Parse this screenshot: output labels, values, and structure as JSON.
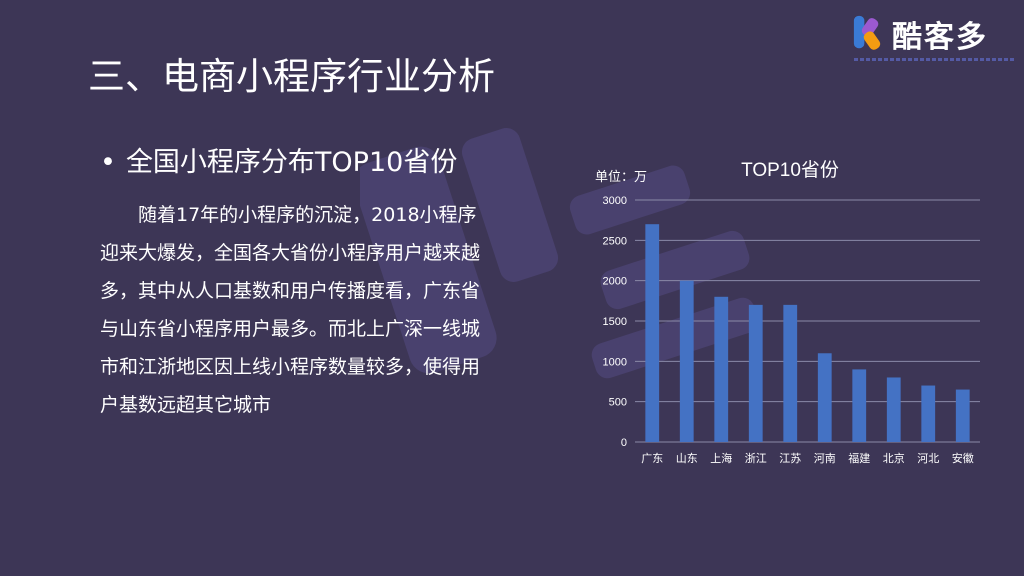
{
  "logo": {
    "text": "酷客多"
  },
  "slide": {
    "title": "三、电商小程序行业分析",
    "bullet_mark": "•",
    "bullet": "全国小程序分布TOP10省份",
    "paragraph_lines": [
      "随着17年的小程序的沉淀，2018小程序",
      "迎来大爆发，全国各大省份小程序用户越来越",
      "多，其中从人口基数和用户传播度看，广东省",
      "与山东省小程序用户最多。而北上广深一线城",
      "市和江浙地区因上线小程序数量较多，使得用",
      "户基数远超其它城市"
    ]
  },
  "chart_data": {
    "type": "bar",
    "title": "TOP10省份",
    "unit_label": "单位：万",
    "categories": [
      "广东",
      "山东",
      "上海",
      "浙江",
      "江苏",
      "河南",
      "福建",
      "北京",
      "河北",
      "安徽"
    ],
    "values": [
      2700,
      2000,
      1800,
      1700,
      1700,
      1100,
      900,
      800,
      700,
      650
    ],
    "yticks": [
      0,
      500,
      1000,
      1500,
      2000,
      2500,
      3000
    ],
    "ylim": [
      0,
      3000
    ],
    "grid": true,
    "bar_color": "#4472c4",
    "grid_color": "#8a8aa8"
  }
}
